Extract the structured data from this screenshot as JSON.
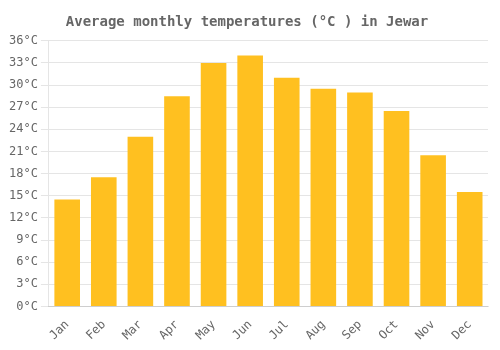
{
  "chart_data": {
    "type": "bar",
    "title": "Average monthly temperatures (°C ) in Jewar",
    "categories": [
      "Jan",
      "Feb",
      "Mar",
      "Apr",
      "May",
      "Jun",
      "Jul",
      "Aug",
      "Sep",
      "Oct",
      "Nov",
      "Dec"
    ],
    "values": [
      14.5,
      17.5,
      23.0,
      28.5,
      33.0,
      34.0,
      31.0,
      29.5,
      29.0,
      26.5,
      20.5,
      15.5
    ],
    "color": "#FFC020",
    "ylim": [
      0,
      36
    ],
    "yticks": [
      {
        "value": 0,
        "label": "0°C"
      },
      {
        "value": 3,
        "label": "3°C"
      },
      {
        "value": 6,
        "label": "6°C"
      },
      {
        "value": 9,
        "label": "9°C"
      },
      {
        "value": 12,
        "label": "12°C"
      },
      {
        "value": 15,
        "label": "15°C"
      },
      {
        "value": 18,
        "label": "18°C"
      },
      {
        "value": 21,
        "label": "21°C"
      },
      {
        "value": 24,
        "label": "24°C"
      },
      {
        "value": 27,
        "label": "27°C"
      },
      {
        "value": 30,
        "label": "30°C"
      },
      {
        "value": 33,
        "label": "33°C"
      },
      {
        "value": 36,
        "label": "36°C"
      }
    ],
    "grid": true
  }
}
